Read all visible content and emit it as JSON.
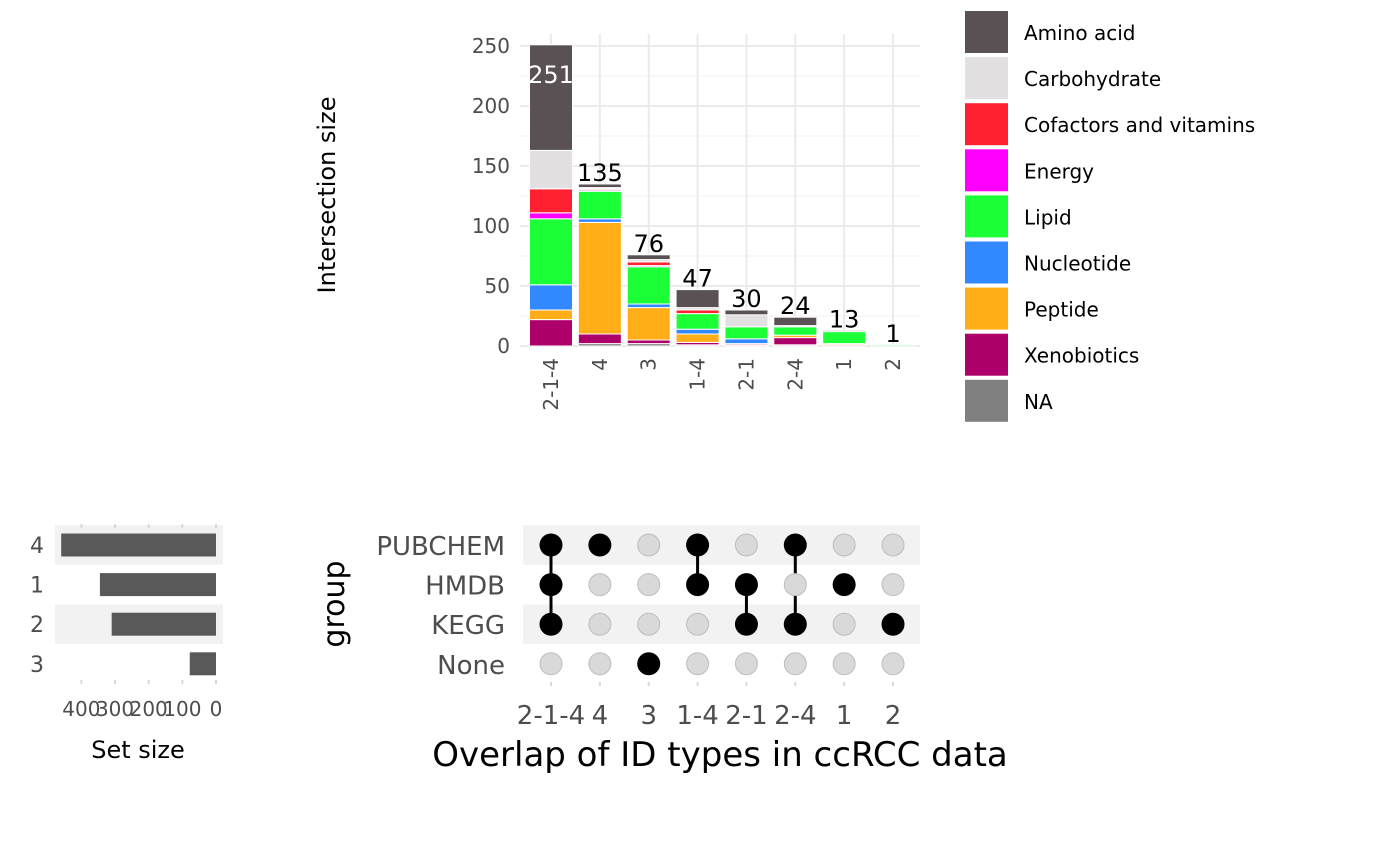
{
  "chart_data": [
    {
      "type": "bar",
      "subtype": "stacked",
      "ylabel": "Intersection size",
      "ylim": [
        0,
        260
      ],
      "yticks": [
        0,
        50,
        100,
        150,
        200,
        250
      ],
      "grid": true,
      "categories": [
        "2-1-4",
        "4",
        "3",
        "1-4",
        "2-1",
        "2-4",
        "1",
        "2"
      ],
      "totals": [
        251,
        135,
        76,
        47,
        30,
        24,
        13,
        1
      ],
      "legend_position": "right",
      "series": [
        {
          "name": "NA",
          "color": "#808080",
          "values": [
            0,
            2,
            2,
            1,
            1,
            1,
            0,
            0
          ]
        },
        {
          "name": "Xenobiotics",
          "color": "#AE006A",
          "values": [
            22,
            8,
            3,
            2,
            1,
            6,
            1,
            0
          ]
        },
        {
          "name": "Peptide",
          "color": "#FFAE17",
          "values": [
            8,
            93,
            27,
            7,
            0,
            2,
            1,
            0
          ]
        },
        {
          "name": "Nucleotide",
          "color": "#3188FF",
          "values": [
            21,
            3,
            3,
            4,
            4,
            0,
            0,
            0
          ]
        },
        {
          "name": "Lipid",
          "color": "#1AFF36",
          "values": [
            55,
            23,
            31,
            13,
            10,
            7,
            10,
            1
          ]
        },
        {
          "name": "Energy",
          "color": "#FF00FF",
          "values": [
            5,
            1,
            1,
            0,
            0,
            0,
            0,
            0
          ]
        },
        {
          "name": "Cofactors and vitamins",
          "color": "#FF2030",
          "values": [
            20,
            1,
            3,
            3,
            0,
            0,
            0,
            0
          ]
        },
        {
          "name": "Carbohydrate",
          "color": "#E2E0E1",
          "values": [
            32,
            1,
            2,
            2,
            10,
            1,
            0,
            0
          ]
        },
        {
          "name": "Amino acid",
          "color": "#5A5155",
          "values": [
            88,
            3,
            4,
            15,
            4,
            7,
            1,
            0
          ]
        }
      ],
      "legend_order": [
        "Amino acid",
        "Carbohydrate",
        "Cofactors and vitamins",
        "Energy",
        "Lipid",
        "Nucleotide",
        "Peptide",
        "Xenobiotics",
        "NA"
      ]
    },
    {
      "type": "bar",
      "subtype": "horizontal-reversed",
      "xlabel": "Set size",
      "categories": [
        "4",
        "1",
        "2",
        "3"
      ],
      "values": [
        460,
        345,
        310,
        78
      ],
      "xlim": [
        0,
        480
      ],
      "xticks": [
        400,
        300,
        200,
        100,
        0
      ],
      "color": "#595959"
    },
    {
      "type": "matrix",
      "ylabel": "group",
      "xlabel": "Overlap of ID types in ccRCC data",
      "rows": [
        "PUBCHEM",
        "HMDB",
        "KEGG",
        "None"
      ],
      "columns": [
        "2-1-4",
        "4",
        "3",
        "1-4",
        "2-1",
        "2-4",
        "1",
        "2"
      ],
      "membership": [
        [
          "PUBCHEM",
          "HMDB",
          "KEGG"
        ],
        [
          "PUBCHEM"
        ],
        [
          "None"
        ],
        [
          "PUBCHEM",
          "HMDB"
        ],
        [
          "HMDB",
          "KEGG"
        ],
        [
          "PUBCHEM",
          "KEGG"
        ],
        [
          "HMDB"
        ],
        [
          "KEGG"
        ]
      ]
    }
  ]
}
